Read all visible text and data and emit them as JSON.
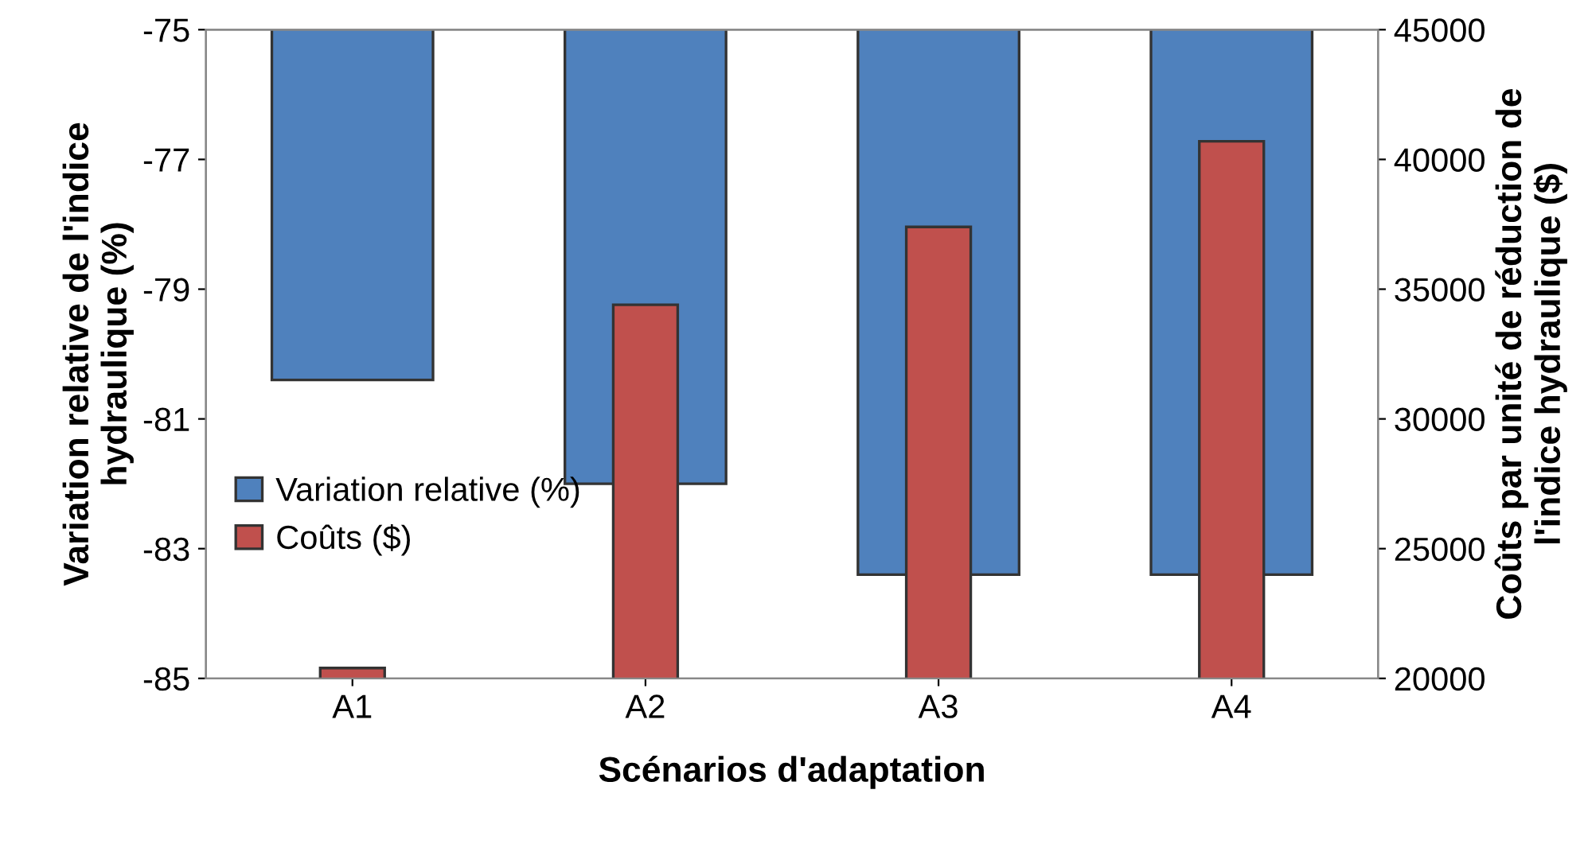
{
  "chart_data": {
    "type": "bar",
    "xlabel": "Scénarios d'adaptation",
    "ylabel": "Variation relative de l'indice\nhydraulique (%)",
    "y2label": "Coûts par unité de réduction de\nl'indice hydraulique ($)",
    "categories": [
      "A1",
      "A2",
      "A3",
      "A4"
    ],
    "series": [
      {
        "name": "Variation relative (%)",
        "color": "#4f81bd",
        "values": [
          -80.4,
          -82.0,
          -83.4,
          -83.4
        ]
      },
      {
        "name": "Coûts ($)",
        "color": "#c0504d",
        "axis": "y2",
        "values": [
          20400,
          34400,
          37400,
          40700
        ]
      }
    ],
    "ylim": [
      -85,
      -75
    ],
    "yticks": [
      -85,
      -83,
      -81,
      -79,
      -77,
      -75
    ],
    "y2lim": [
      20000,
      45000
    ],
    "y2ticks": [
      20000,
      25000,
      30000,
      35000,
      40000,
      45000
    ],
    "grid": false,
    "legend": "left"
  }
}
